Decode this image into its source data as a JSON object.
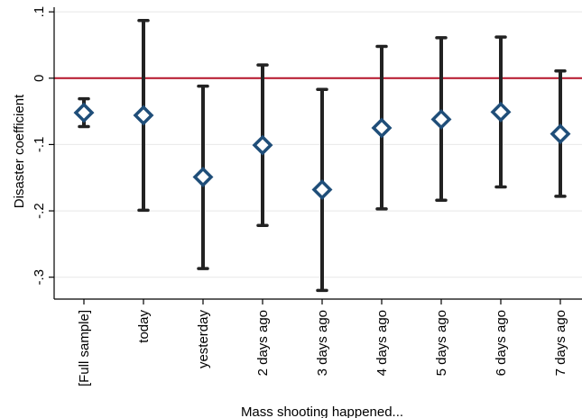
{
  "chart_data": {
    "type": "scatter",
    "subtype": "coefficient-plot-with-confidence-intervals",
    "xlabel": "Mass shooting happened...",
    "ylabel": "Disaster coefficient",
    "categories": [
      "[Full sample]",
      "today",
      "yesterday",
      "2 days ago",
      "3 days ago",
      "4 days ago",
      "5 days ago",
      "6 days ago",
      "7 days ago"
    ],
    "estimates": [
      -0.052,
      -0.056,
      -0.149,
      -0.101,
      -0.168,
      -0.075,
      -0.062,
      -0.051,
      -0.084
    ],
    "ci_low": [
      -0.073,
      -0.199,
      -0.287,
      -0.222,
      -0.32,
      -0.197,
      -0.184,
      -0.164,
      -0.178
    ],
    "ci_high": [
      -0.031,
      0.087,
      -0.012,
      0.02,
      -0.017,
      0.048,
      0.061,
      0.062,
      0.011
    ],
    "yticks": [
      0.1,
      0,
      -0.1,
      -0.2,
      -0.3
    ],
    "ytick_labels": [
      ".1",
      "0",
      "-.1",
      "-.2",
      "-.3"
    ],
    "ylim": [
      -0.333,
      0.107
    ],
    "reference_line": {
      "y": 0,
      "color": "#b5142a"
    },
    "colors": {
      "marker": "#1f4e79",
      "ci": "#222222",
      "grid": "#e8e8e8",
      "axis": "#000000"
    },
    "grid": true,
    "marker_shape": "diamond"
  }
}
